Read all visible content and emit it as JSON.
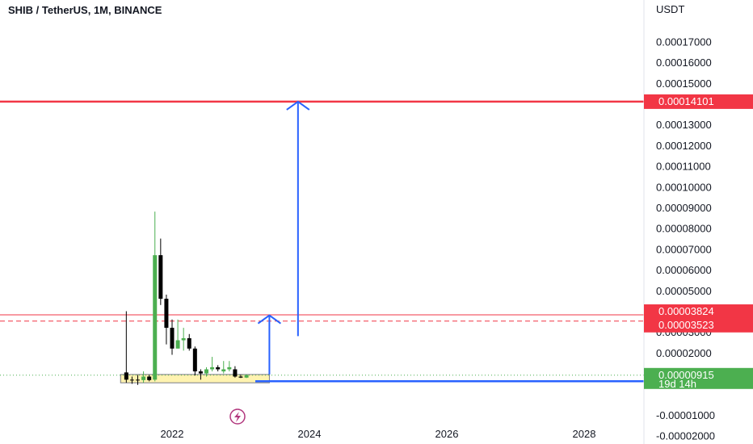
{
  "chart_data": {
    "type": "candlestick",
    "title": "SHIB / TetherUS, 1M, BINANCE",
    "y_unit": "USDT",
    "ylim": [
      -2.4e-05,
      0.00019
    ],
    "y_ticks": [
      -2e-05,
      -1e-05,
      2e-05,
      3e-05,
      5e-05,
      6e-05,
      7e-05,
      8e-05,
      9e-05,
      0.0001,
      0.00011,
      0.00012,
      0.00013,
      0.00015,
      0.00016,
      0.00017
    ],
    "y_tick_labels": [
      "-0.00002000",
      "-0.00001000",
      "0.00002000",
      "0.00003000",
      "0.00005000",
      "0.00006000",
      "0.00007000",
      "0.00008000",
      "0.00009000",
      "0.00010000",
      "0.00011000",
      "0.00012000",
      "0.00013000",
      "0.00015000",
      "0.00016000",
      "0.00017000"
    ],
    "x_ticks": [
      "2022",
      "2024",
      "2026",
      "2028"
    ],
    "candles": [
      {
        "date": "2021-05",
        "open": 1.05e-05,
        "high": 4e-05,
        "low": 5.5e-06,
        "close": 7e-06,
        "color": "down"
      },
      {
        "date": "2021-06",
        "open": 7e-06,
        "high": 8.5e-06,
        "low": 5e-06,
        "close": 7e-06,
        "color": "down"
      },
      {
        "date": "2021-07",
        "open": 7e-06,
        "high": 9.2e-06,
        "low": 4.5e-06,
        "close": 6.8e-06,
        "color": "down"
      },
      {
        "date": "2021-08",
        "open": 6.8e-06,
        "high": 1.1e-05,
        "low": 5.5e-06,
        "close": 8.5e-06,
        "color": "up"
      },
      {
        "date": "2021-09",
        "open": 8.5e-06,
        "high": 9.3e-06,
        "low": 6.2e-06,
        "close": 6.8e-06,
        "color": "down"
      },
      {
        "date": "2021-10",
        "open": 7e-06,
        "high": 8.8e-05,
        "low": 6.2e-06,
        "close": 6.7e-05,
        "color": "up"
      },
      {
        "date": "2021-11",
        "open": 6.7e-05,
        "high": 7.5e-05,
        "low": 4.3e-05,
        "close": 4.6e-05,
        "color": "down"
      },
      {
        "date": "2021-12",
        "open": 4.6e-05,
        "high": 4.8e-05,
        "low": 2.4e-05,
        "close": 3.2e-05,
        "color": "down"
      },
      {
        "date": "2022-01",
        "open": 3.2e-05,
        "high": 3.6e-05,
        "low": 1.9e-05,
        "close": 2.2e-05,
        "color": "down"
      },
      {
        "date": "2022-02",
        "open": 2.2e-05,
        "high": 3.6e-05,
        "low": 2.2e-05,
        "close": 2.6e-05,
        "color": "up"
      },
      {
        "date": "2022-03",
        "open": 2.6e-05,
        "high": 3.2e-05,
        "low": 2.1e-05,
        "close": 2.7e-05,
        "color": "up"
      },
      {
        "date": "2022-04",
        "open": 2.7e-05,
        "high": 2.9e-05,
        "low": 2.1e-05,
        "close": 2.2e-05,
        "color": "down"
      },
      {
        "date": "2022-05",
        "open": 2.2e-05,
        "high": 2.3e-05,
        "low": 9e-06,
        "close": 1.1e-05,
        "color": "down"
      },
      {
        "date": "2022-06",
        "open": 1.1e-05,
        "high": 1.2e-05,
        "low": 7e-06,
        "close": 1e-05,
        "color": "down"
      },
      {
        "date": "2022-07",
        "open": 1e-05,
        "high": 1.3e-05,
        "low": 8.5e-06,
        "close": 1.2e-05,
        "color": "up"
      },
      {
        "date": "2022-08",
        "open": 1.2e-05,
        "high": 1.8e-05,
        "low": 1.1e-05,
        "close": 1.3e-05,
        "color": "up"
      },
      {
        "date": "2022-09",
        "open": 1.3e-05,
        "high": 1.4e-05,
        "low": 1.1e-05,
        "close": 1.2e-05,
        "color": "down"
      },
      {
        "date": "2022-10",
        "open": 1.2e-05,
        "high": 1.6e-05,
        "low": 1e-05,
        "close": 1.1e-05,
        "color": "up"
      },
      {
        "date": "2022-11",
        "open": 1.3e-05,
        "high": 1.6e-05,
        "low": 1.1e-05,
        "close": 1.2e-05,
        "color": "up"
      },
      {
        "date": "2022-12",
        "open": 1.2e-05,
        "high": 1.35e-05,
        "low": 8e-06,
        "close": 8.5e-06,
        "color": "down"
      },
      {
        "date": "2023-01",
        "open": 8.5e-06,
        "high": 9.5e-06,
        "low": 7.8e-06,
        "close": 8e-06,
        "color": "down"
      },
      {
        "date": "2023-02",
        "open": 8e-06,
        "high": 9.5e-06,
        "low": 7.8e-06,
        "close": 9.2e-06,
        "color": "up"
      }
    ],
    "horizontal_lines": [
      {
        "value": 0.00014101,
        "color": "#f23645",
        "style": "solid",
        "label": "0.00014101"
      },
      {
        "value": 3.824e-05,
        "color": "#f23645",
        "style": "solid",
        "label": "0.00003824"
      },
      {
        "value": 3.523e-05,
        "color": "#f23645",
        "style": "dashed",
        "label": "0.00003523"
      },
      {
        "value": 6.25e-06,
        "color": "#2962ff",
        "style": "solid",
        "label": "0.00000625"
      },
      {
        "value": 9.15e-06,
        "color": "#4caf50",
        "style": "dotted",
        "label": "0.00000915",
        "sub_label": "19d 14h"
      }
    ],
    "arrows": [
      {
        "x_date": "2023-06",
        "from": 9.5e-06,
        "to": 3.8e-05
      },
      {
        "x_date": "2023-11",
        "from": 2.8e-05,
        "to": 0.000141
      }
    ],
    "zone": {
      "from_date": "2021-04",
      "to_date": "2023-06",
      "low": 5.5e-06,
      "high": 9.5e-06
    },
    "colors": {
      "up": "#4caf50",
      "down": "#000000",
      "red": "#f23645",
      "blue": "#2962ff",
      "green": "#26a69a",
      "zone_fill": "#fff3b0"
    },
    "icon": "lightning-icon"
  }
}
